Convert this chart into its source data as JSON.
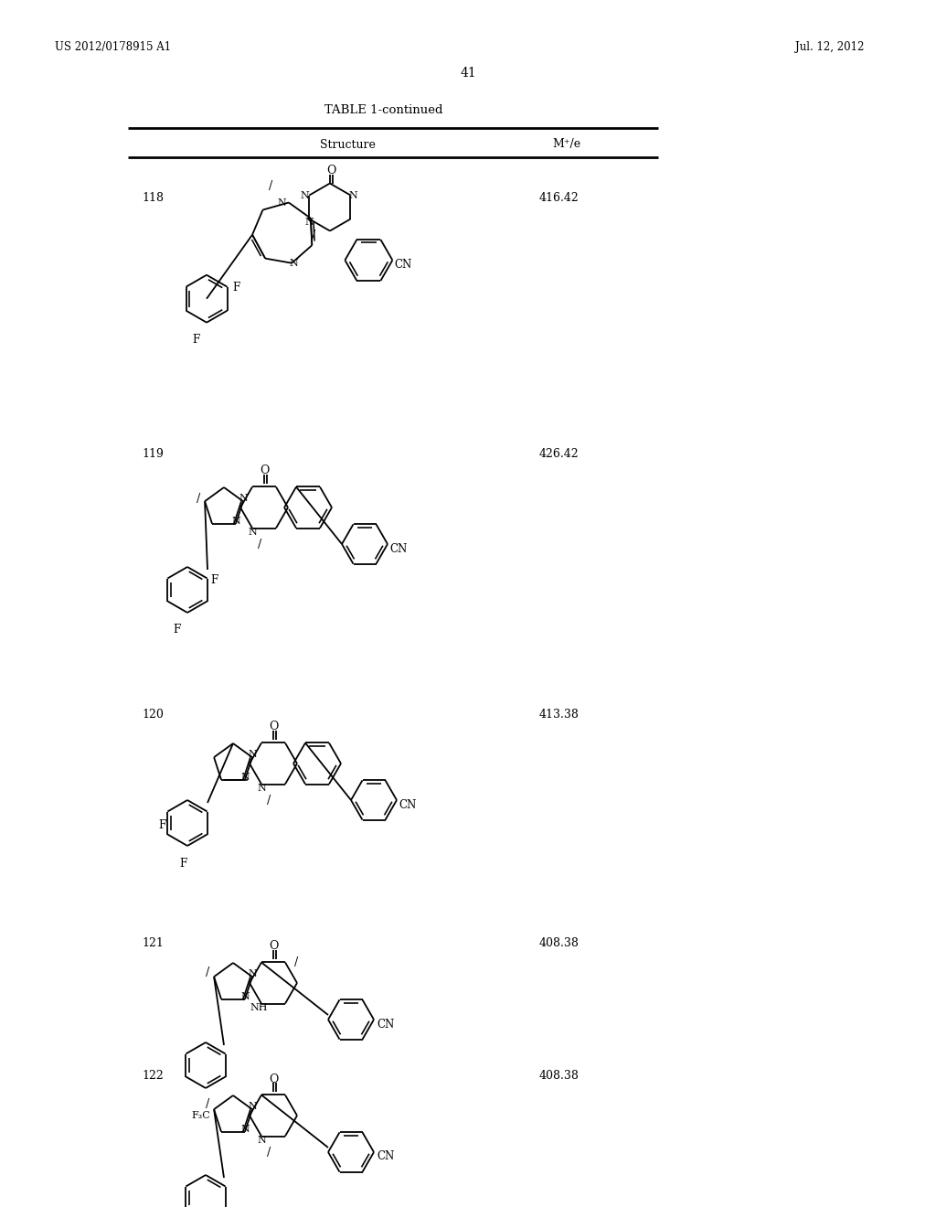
{
  "page_header_left": "US 2012/0178915 A1",
  "page_header_right": "Jul. 12, 2012",
  "page_number": "41",
  "table_title": "TABLE 1-continued",
  "col_structure": "Structure",
  "col_mz": "M⁺/e",
  "background_color": "#ffffff",
  "text_color": "#000000",
  "entries": [
    {
      "num": "118",
      "mz": "416.42"
    },
    {
      "num": "119",
      "mz": "426.42"
    },
    {
      "num": "120",
      "mz": "413.38"
    },
    {
      "num": "121",
      "mz": "408.38"
    },
    {
      "num": "122",
      "mz": "408.38"
    }
  ],
  "figure_width": 10.24,
  "figure_height": 13.2,
  "dpi": 100
}
